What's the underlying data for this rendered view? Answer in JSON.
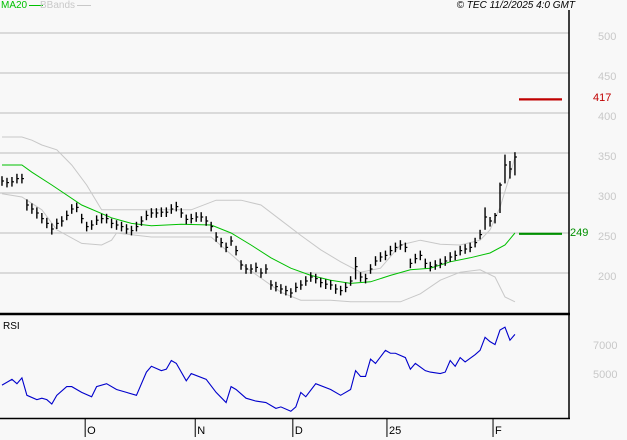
{
  "header": {
    "legend": [
      {
        "label": "MA20",
        "color": "#00c000"
      },
      {
        "label": "BBands",
        "color": "#c8c8c8"
      }
    ],
    "copyright": "© TEC 11/2/2025 4:0 GMT"
  },
  "chart_data": [
    {
      "type": "ohlc",
      "ylim": [
        150,
        520
      ],
      "y_ticks": [
        "200",
        "250",
        "300",
        "350",
        "400",
        "450",
        "500"
      ],
      "grid": true,
      "x_ticks": [
        {
          "label": "O",
          "bar": 16.7
        },
        {
          "label": "N",
          "bar": 38.8
        },
        {
          "label": "D",
          "bar": 58.4
        },
        {
          "label": "25",
          "bar": 77.3
        },
        {
          "label": "F",
          "bar": 98.6
        }
      ],
      "bars_hlc": [
        [
          321,
          309,
          315
        ],
        [
          319,
          307,
          313
        ],
        [
          320,
          308,
          314
        ],
        [
          324,
          312,
          318
        ],
        [
          324,
          312,
          318
        ],
        [
          292,
          278,
          285
        ],
        [
          287,
          274,
          280
        ],
        [
          282,
          268,
          275
        ],
        [
          275,
          262,
          268
        ],
        [
          269,
          256,
          262
        ],
        [
          262,
          248,
          255
        ],
        [
          268,
          255,
          262
        ],
        [
          271,
          258,
          265
        ],
        [
          278,
          266,
          272
        ],
        [
          286,
          274,
          280
        ],
        [
          288,
          276,
          282
        ],
        [
          274,
          262,
          268
        ],
        [
          264,
          252,
          258
        ],
        [
          266,
          254,
          260
        ],
        [
          272,
          260,
          266
        ],
        [
          274,
          262,
          268
        ],
        [
          274,
          262,
          268
        ],
        [
          268,
          256,
          262
        ],
        [
          266,
          254,
          260
        ],
        [
          264,
          252,
          258
        ],
        [
          261,
          249,
          255
        ],
        [
          259,
          247,
          253
        ],
        [
          264,
          252,
          258
        ],
        [
          271,
          259,
          265
        ],
        [
          278,
          266,
          272
        ],
        [
          281,
          269,
          275
        ],
        [
          281,
          269,
          275
        ],
        [
          282,
          270,
          276
        ],
        [
          282,
          270,
          276
        ],
        [
          286,
          274,
          280
        ],
        [
          289,
          277,
          283
        ],
        [
          281,
          269,
          275
        ],
        [
          273,
          261,
          267
        ],
        [
          274,
          262,
          268
        ],
        [
          276,
          264,
          270
        ],
        [
          276,
          264,
          270
        ],
        [
          271,
          259,
          265
        ],
        [
          264,
          252,
          258
        ],
        [
          251,
          239,
          245
        ],
        [
          244,
          232,
          238
        ],
        [
          238,
          226,
          232
        ],
        [
          246,
          234,
          240
        ],
        [
          234,
          222,
          228
        ],
        [
          216,
          204,
          210
        ],
        [
          211,
          199,
          205
        ],
        [
          211,
          199,
          205
        ],
        [
          213,
          201,
          207
        ],
        [
          206,
          194,
          200
        ],
        [
          211,
          199,
          205
        ],
        [
          191,
          179,
          185
        ],
        [
          189,
          177,
          183
        ],
        [
          186,
          174,
          180
        ],
        [
          184,
          172,
          178
        ],
        [
          181,
          169,
          175
        ],
        [
          188,
          176,
          182
        ],
        [
          191,
          179,
          185
        ],
        [
          196,
          184,
          190
        ],
        [
          201,
          189,
          195
        ],
        [
          199,
          187,
          193
        ],
        [
          194,
          182,
          188
        ],
        [
          192,
          180,
          186
        ],
        [
          191,
          179,
          185
        ],
        [
          186,
          174,
          180
        ],
        [
          184,
          172,
          178
        ],
        [
          188,
          176,
          182
        ],
        [
          196,
          184,
          190
        ],
        [
          220,
          192,
          208
        ],
        [
          201,
          189,
          195
        ],
        [
          199,
          187,
          193
        ],
        [
          211,
          199,
          205
        ],
        [
          221,
          209,
          215
        ],
        [
          226,
          214,
          220
        ],
        [
          228,
          216,
          222
        ],
        [
          234,
          222,
          228
        ],
        [
          238,
          226,
          232
        ],
        [
          241,
          229,
          235
        ],
        [
          238,
          226,
          232
        ],
        [
          218,
          206,
          212
        ],
        [
          224,
          212,
          218
        ],
        [
          228,
          216,
          222
        ],
        [
          218,
          206,
          212
        ],
        [
          214,
          202,
          208
        ],
        [
          216,
          204,
          210
        ],
        [
          218,
          206,
          212
        ],
        [
          221,
          209,
          215
        ],
        [
          226,
          214,
          220
        ],
        [
          228,
          216,
          222
        ],
        [
          234,
          222,
          228
        ],
        [
          236,
          224,
          230
        ],
        [
          238,
          226,
          232
        ],
        [
          244,
          232,
          238
        ],
        [
          254,
          242,
          248
        ],
        [
          282,
          254,
          270
        ],
        [
          270,
          258,
          265
        ],
        [
          275,
          262,
          272
        ],
        [
          313,
          275,
          310
        ],
        [
          348,
          312,
          335
        ],
        [
          340,
          318,
          330
        ],
        [
          351,
          322,
          345
        ]
      ],
      "series": [
        {
          "name": "MA20",
          "color": "#00c000",
          "points": [
            [
              0,
              335
            ],
            [
              4,
              335
            ],
            [
              6,
              326
            ],
            [
              10,
              310
            ],
            [
              16,
              285
            ],
            [
              22,
              269
            ],
            [
              26,
              262
            ],
            [
              30,
              259
            ],
            [
              36,
              261
            ],
            [
              42,
              260
            ],
            [
              46,
              250
            ],
            [
              50,
              235
            ],
            [
              54,
              219
            ],
            [
              58,
              206
            ],
            [
              62,
              197
            ],
            [
              66,
              191
            ],
            [
              70,
              187
            ],
            [
              74,
              189
            ],
            [
              78,
              197
            ],
            [
              82,
              204
            ],
            [
              86,
              206
            ],
            [
              90,
              214
            ],
            [
              94,
              219
            ],
            [
              98,
              225
            ],
            [
              101,
              235
            ],
            [
              103,
              250
            ]
          ]
        },
        {
          "name": "BBands",
          "color": "#c8c8c8",
          "points": [
            [
              0,
              370
            ],
            [
              4,
              370
            ],
            [
              6,
              366
            ],
            [
              8,
              360
            ],
            [
              11,
              354
            ],
            [
              14,
              335
            ],
            [
              17,
              310
            ],
            [
              20,
              279
            ],
            [
              23,
              279
            ],
            [
              27,
              279
            ],
            [
              32,
              279
            ],
            [
              38,
              279
            ],
            [
              43,
              291
            ],
            [
              48,
              291
            ],
            [
              52,
              285
            ],
            [
              56,
              266
            ],
            [
              60,
              247
            ],
            [
              64,
              229
            ],
            [
              68,
              214
            ],
            [
              72,
              201
            ],
            [
              76,
              206
            ],
            [
              80,
              235
            ],
            [
              84,
              241
            ],
            [
              88,
              236
            ],
            [
              92,
              235
            ],
            [
              96,
              241
            ],
            [
              98,
              254
            ],
            [
              100,
              282
            ],
            [
              102,
              322
            ],
            [
              103,
              345
            ]
          ]
        },
        {
          "color": "#c8c8c8",
          "points": [
            [
              0,
              299
            ],
            [
              4,
              295
            ],
            [
              8,
              279
            ],
            [
              11,
              254
            ],
            [
              16,
              237
            ],
            [
              20,
              235
            ],
            [
              22,
              241
            ],
            [
              23,
              250
            ],
            [
              30,
              245
            ],
            [
              42,
              245
            ],
            [
              49,
              207
            ],
            [
              56,
              176
            ],
            [
              60,
              166
            ],
            [
              66,
              166
            ],
            [
              70,
              164
            ],
            [
              80,
              164
            ],
            [
              84,
              174
            ],
            [
              88,
              191
            ],
            [
              92,
              201
            ],
            [
              96,
              204
            ],
            [
              99,
              195
            ],
            [
              101,
              170
            ],
            [
              103,
              164
            ]
          ]
        }
      ],
      "levels": [
        {
          "label": "417",
          "value": 417,
          "color": "#c00000"
        },
        {
          "label": "249",
          "value": 249,
          "color": "#009000"
        }
      ]
    },
    {
      "type": "line",
      "title": "RSI",
      "ylim": [
        0,
        100
      ],
      "y_ticks": [
        {
          "label": "7000",
          "value": 70
        },
        {
          "label": "5000",
          "value": 50
        }
      ],
      "color": "#0000cc",
      "points": [
        [
          0,
          43
        ],
        [
          2,
          47
        ],
        [
          3,
          44
        ],
        [
          4,
          48
        ],
        [
          5,
          36
        ],
        [
          7,
          33
        ],
        [
          8,
          34
        ],
        [
          9,
          33
        ],
        [
          10,
          30
        ],
        [
          11,
          36
        ],
        [
          13,
          42
        ],
        [
          14,
          42
        ],
        [
          16,
          38
        ],
        [
          18,
          35
        ],
        [
          19,
          42
        ],
        [
          21,
          44
        ],
        [
          23,
          40
        ],
        [
          25,
          38
        ],
        [
          27,
          36
        ],
        [
          29,
          52
        ],
        [
          30,
          56
        ],
        [
          32,
          53
        ],
        [
          33,
          54
        ],
        [
          34,
          60
        ],
        [
          35,
          58
        ],
        [
          37,
          46
        ],
        [
          38,
          51
        ],
        [
          41,
          47
        ],
        [
          43,
          38
        ],
        [
          45,
          31
        ],
        [
          46,
          42
        ],
        [
          47,
          40
        ],
        [
          49,
          34
        ],
        [
          51,
          32
        ],
        [
          53,
          31
        ],
        [
          55,
          27
        ],
        [
          56,
          28
        ],
        [
          58,
          25
        ],
        [
          59,
          28
        ],
        [
          60,
          38
        ],
        [
          61,
          35
        ],
        [
          63,
          44
        ],
        [
          66,
          40
        ],
        [
          68,
          36
        ],
        [
          70,
          40
        ],
        [
          71,
          53
        ],
        [
          72,
          49
        ],
        [
          73,
          49
        ],
        [
          74,
          61
        ],
        [
          75,
          58
        ],
        [
          77,
          67
        ],
        [
          78,
          65
        ],
        [
          79,
          65
        ],
        [
          81,
          62
        ],
        [
          82,
          54
        ],
        [
          83,
          58
        ],
        [
          85,
          53
        ],
        [
          86,
          52
        ],
        [
          88,
          51
        ],
        [
          89,
          52
        ],
        [
          90,
          60
        ],
        [
          91,
          56
        ],
        [
          92,
          62
        ],
        [
          93,
          59
        ],
        [
          95,
          64
        ],
        [
          96,
          67
        ],
        [
          97,
          76
        ],
        [
          98,
          73
        ],
        [
          99,
          71
        ],
        [
          100,
          81
        ],
        [
          101,
          83
        ],
        [
          102,
          74
        ],
        [
          103,
          78
        ]
      ]
    }
  ]
}
